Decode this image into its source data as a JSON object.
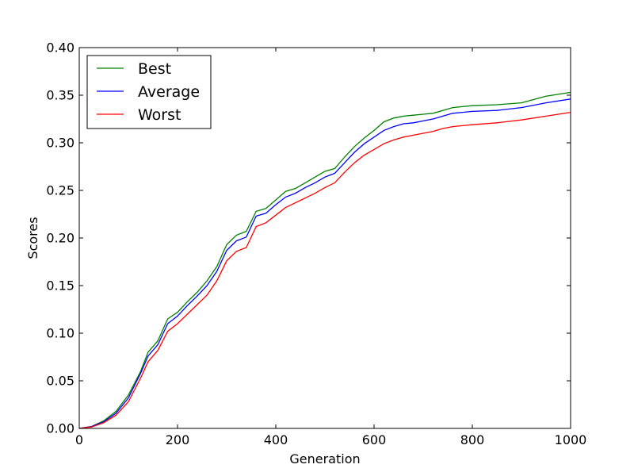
{
  "chart_data": {
    "type": "line",
    "title": "",
    "xlabel": "Generation",
    "ylabel": "Scores",
    "xlim": [
      0,
      1000
    ],
    "ylim": [
      0.0,
      0.4
    ],
    "grid": false,
    "legend_position": "top-left",
    "x_ticks": [
      {
        "value": 0,
        "label": "0"
      },
      {
        "value": 200,
        "label": "200"
      },
      {
        "value": 400,
        "label": "400"
      },
      {
        "value": 600,
        "label": "600"
      },
      {
        "value": 800,
        "label": "800"
      },
      {
        "value": 1000,
        "label": "1000"
      }
    ],
    "y_ticks": [
      {
        "value": 0.0,
        "label": "0.00"
      },
      {
        "value": 0.05,
        "label": "0.05"
      },
      {
        "value": 0.1,
        "label": "0.10"
      },
      {
        "value": 0.15,
        "label": "0.15"
      },
      {
        "value": 0.2,
        "label": "0.20"
      },
      {
        "value": 0.25,
        "label": "0.25"
      },
      {
        "value": 0.3,
        "label": "0.30"
      },
      {
        "value": 0.35,
        "label": "0.35"
      },
      {
        "value": 0.4,
        "label": "0.40"
      }
    ],
    "series": [
      {
        "name": "Best",
        "color": "#008000",
        "points": [
          [
            0,
            0.0
          ],
          [
            25,
            0.002
          ],
          [
            50,
            0.008
          ],
          [
            75,
            0.018
          ],
          [
            100,
            0.035
          ],
          [
            125,
            0.06
          ],
          [
            140,
            0.08
          ],
          [
            160,
            0.092
          ],
          [
            180,
            0.115
          ],
          [
            200,
            0.122
          ],
          [
            220,
            0.133
          ],
          [
            240,
            0.143
          ],
          [
            260,
            0.155
          ],
          [
            280,
            0.17
          ],
          [
            300,
            0.193
          ],
          [
            320,
            0.203
          ],
          [
            340,
            0.207
          ],
          [
            360,
            0.228
          ],
          [
            380,
            0.231
          ],
          [
            400,
            0.24
          ],
          [
            420,
            0.249
          ],
          [
            440,
            0.252
          ],
          [
            460,
            0.258
          ],
          [
            480,
            0.264
          ],
          [
            500,
            0.27
          ],
          [
            520,
            0.273
          ],
          [
            540,
            0.285
          ],
          [
            560,
            0.296
          ],
          [
            580,
            0.305
          ],
          [
            600,
            0.313
          ],
          [
            620,
            0.322
          ],
          [
            640,
            0.326
          ],
          [
            660,
            0.328
          ],
          [
            680,
            0.329
          ],
          [
            700,
            0.33
          ],
          [
            720,
            0.331
          ],
          [
            740,
            0.334
          ],
          [
            760,
            0.337
          ],
          [
            780,
            0.338
          ],
          [
            800,
            0.339
          ],
          [
            850,
            0.34
          ],
          [
            900,
            0.342
          ],
          [
            950,
            0.349
          ],
          [
            1000,
            0.353
          ]
        ]
      },
      {
        "name": "Average",
        "color": "#0000ff",
        "points": [
          [
            0,
            0.0
          ],
          [
            25,
            0.002
          ],
          [
            50,
            0.007
          ],
          [
            75,
            0.016
          ],
          [
            100,
            0.032
          ],
          [
            125,
            0.058
          ],
          [
            140,
            0.076
          ],
          [
            160,
            0.088
          ],
          [
            180,
            0.11
          ],
          [
            200,
            0.118
          ],
          [
            220,
            0.129
          ],
          [
            240,
            0.139
          ],
          [
            260,
            0.15
          ],
          [
            280,
            0.165
          ],
          [
            300,
            0.187
          ],
          [
            320,
            0.197
          ],
          [
            340,
            0.201
          ],
          [
            360,
            0.223
          ],
          [
            380,
            0.226
          ],
          [
            400,
            0.235
          ],
          [
            420,
            0.243
          ],
          [
            440,
            0.247
          ],
          [
            460,
            0.253
          ],
          [
            480,
            0.258
          ],
          [
            500,
            0.264
          ],
          [
            520,
            0.268
          ],
          [
            540,
            0.279
          ],
          [
            560,
            0.29
          ],
          [
            580,
            0.299
          ],
          [
            600,
            0.306
          ],
          [
            620,
            0.313
          ],
          [
            640,
            0.317
          ],
          [
            660,
            0.32
          ],
          [
            680,
            0.321
          ],
          [
            700,
            0.323
          ],
          [
            720,
            0.325
          ],
          [
            740,
            0.328
          ],
          [
            760,
            0.331
          ],
          [
            780,
            0.332
          ],
          [
            800,
            0.333
          ],
          [
            850,
            0.334
          ],
          [
            900,
            0.337
          ],
          [
            950,
            0.342
          ],
          [
            1000,
            0.346
          ]
        ]
      },
      {
        "name": "Worst",
        "color": "#ff0000",
        "points": [
          [
            0,
            0.0
          ],
          [
            25,
            0.0015
          ],
          [
            50,
            0.006
          ],
          [
            75,
            0.014
          ],
          [
            100,
            0.028
          ],
          [
            125,
            0.053
          ],
          [
            140,
            0.07
          ],
          [
            160,
            0.082
          ],
          [
            180,
            0.102
          ],
          [
            200,
            0.11
          ],
          [
            220,
            0.12
          ],
          [
            240,
            0.13
          ],
          [
            260,
            0.14
          ],
          [
            280,
            0.155
          ],
          [
            300,
            0.176
          ],
          [
            320,
            0.186
          ],
          [
            340,
            0.19
          ],
          [
            360,
            0.212
          ],
          [
            380,
            0.216
          ],
          [
            400,
            0.224
          ],
          [
            420,
            0.232
          ],
          [
            440,
            0.237
          ],
          [
            460,
            0.242
          ],
          [
            480,
            0.247
          ],
          [
            500,
            0.253
          ],
          [
            520,
            0.258
          ],
          [
            540,
            0.269
          ],
          [
            560,
            0.279
          ],
          [
            580,
            0.287
          ],
          [
            600,
            0.293
          ],
          [
            620,
            0.299
          ],
          [
            640,
            0.303
          ],
          [
            660,
            0.306
          ],
          [
            680,
            0.308
          ],
          [
            700,
            0.31
          ],
          [
            720,
            0.312
          ],
          [
            740,
            0.315
          ],
          [
            760,
            0.317
          ],
          [
            780,
            0.318
          ],
          [
            800,
            0.319
          ],
          [
            850,
            0.321
          ],
          [
            900,
            0.324
          ],
          [
            950,
            0.328
          ],
          [
            1000,
            0.332
          ]
        ]
      }
    ]
  }
}
